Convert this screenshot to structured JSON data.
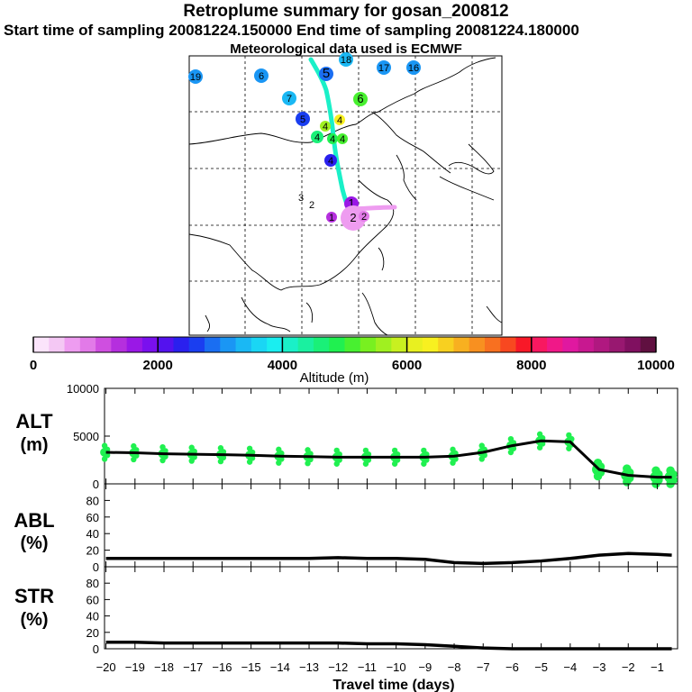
{
  "header": {
    "title": "Retroplume summary for gosan_200812",
    "sampling_line": "Start time of sampling 20081224.150000     End time of sampling 20081224.180000",
    "met_line": "Meteorological data used is ECMWF"
  },
  "colorbar": {
    "min": 0,
    "max": 10000,
    "tick_labels": [
      "0",
      "2000",
      "4000",
      "6000",
      "8000",
      "10000"
    ],
    "label": "Altitude (m)",
    "colors": [
      "#fbe4fb",
      "#f4c8f4",
      "#ee9cf0",
      "#e27ae8",
      "#cf4fe0",
      "#b52fde",
      "#9a18e6",
      "#7a10ee",
      "#5412ee",
      "#2a20ee",
      "#1a3ef0",
      "#1a6ef2",
      "#1a96f4",
      "#1ab8f4",
      "#1ad6f4",
      "#1aeef0",
      "#1af0c8",
      "#1af0a0",
      "#1af078",
      "#20f050",
      "#48f030",
      "#78f020",
      "#a0f020",
      "#c8f020",
      "#e8f020",
      "#f8f020",
      "#f8d020",
      "#f8b020",
      "#f89020",
      "#f87020",
      "#f84820",
      "#f81828",
      "#f81860",
      "#f01888",
      "#e018a0",
      "#c81890",
      "#b01880",
      "#981870",
      "#801060",
      "#601040"
    ]
  },
  "map": {
    "cluster_labels": [
      "19",
      "6",
      "18",
      "5",
      "17",
      "16",
      "7",
      "6",
      "5",
      "4",
      "4",
      "4",
      "4",
      "4",
      "4",
      "3",
      "2",
      "1",
      "2",
      "1",
      "2"
    ]
  },
  "chart_data": [
    {
      "type": "scatter",
      "name": "ALT",
      "ylabel": "ALT\n(m)",
      "ylim": [
        0,
        10000
      ],
      "yticks": [
        0,
        5000,
        10000
      ],
      "xlim": [
        -20,
        -0.5
      ],
      "x": [
        -20,
        -19,
        -18,
        -17,
        -16,
        -15,
        -14,
        -13,
        -12,
        -11,
        -10,
        -9,
        -8,
        -7,
        -6,
        -5,
        -4,
        -3,
        -2,
        -1,
        -0.5
      ],
      "mean_altitude": [
        3300,
        3250,
        3150,
        3100,
        3050,
        3000,
        2900,
        2850,
        2800,
        2800,
        2800,
        2800,
        2900,
        3300,
        4000,
        4500,
        4400,
        1500,
        900,
        700,
        700
      ]
    },
    {
      "type": "line",
      "name": "ABL",
      "ylabel": "ABL\n(%)",
      "ylim": [
        0,
        100
      ],
      "yticks": [
        0,
        20,
        40,
        60,
        80
      ],
      "x": [
        -20,
        -19,
        -18,
        -17,
        -16,
        -15,
        -14,
        -13,
        -12,
        -11,
        -10,
        -9,
        -8,
        -7,
        -6,
        -5,
        -4,
        -3,
        -2,
        -1,
        -0.5
      ],
      "values": [
        10,
        10,
        10,
        10,
        10,
        10,
        10,
        10,
        11,
        10,
        10,
        9,
        5,
        4,
        5,
        7,
        10,
        14,
        16,
        15,
        14
      ]
    },
    {
      "type": "line",
      "name": "STR",
      "ylabel": "STR\n(%)",
      "ylim": [
        0,
        100
      ],
      "yticks": [
        0,
        20,
        40,
        60,
        80
      ],
      "x": [
        -20,
        -19,
        -18,
        -17,
        -16,
        -15,
        -14,
        -13,
        -12,
        -11,
        -10,
        -9,
        -8,
        -7,
        -6,
        -5,
        -4,
        -3,
        -2,
        -1,
        -0.5
      ],
      "values": [
        8,
        8,
        7,
        7,
        7,
        7,
        7,
        7,
        7,
        6,
        6,
        5,
        3,
        1,
        0,
        0,
        0,
        0,
        0,
        0,
        0
      ],
      "xticks": [
        -20,
        -19,
        -18,
        -17,
        -16,
        -15,
        -14,
        -13,
        -12,
        -11,
        -10,
        -9,
        -8,
        -7,
        -6,
        -5,
        -4,
        -3,
        -2,
        -1
      ],
      "xlabel": "Travel time (days)"
    }
  ]
}
